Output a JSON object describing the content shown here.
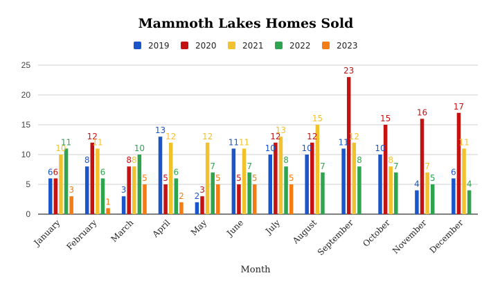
{
  "chart_data": {
    "type": "bar",
    "title": "Mammoth Lakes Homes Sold",
    "xlabel": "Month",
    "ylabel": "",
    "ylim": [
      0,
      25
    ],
    "yticks": [
      0,
      5,
      10,
      15,
      20,
      25
    ],
    "grid": true,
    "legend_position": "top",
    "categories": [
      "January",
      "February",
      "March",
      "April",
      "May",
      "June",
      "July",
      "August",
      "September",
      "October",
      "November",
      "December"
    ],
    "series": [
      {
        "name": "2019",
        "color": "#1a56c9",
        "values": [
          6,
          8,
          3,
          13,
          2,
          11,
          10,
          10,
          11,
          10,
          4,
          6
        ]
      },
      {
        "name": "2020",
        "color": "#c41212",
        "values": [
          6,
          12,
          8,
          5,
          3,
          5,
          12,
          12,
          23,
          15,
          16,
          17
        ]
      },
      {
        "name": "2021",
        "color": "#f2c12e",
        "values": [
          10,
          11,
          8,
          12,
          12,
          11,
          13,
          15,
          12,
          8,
          7,
          11
        ]
      },
      {
        "name": "2022",
        "color": "#2ea44f",
        "values": [
          11,
          6,
          10,
          6,
          7,
          7,
          8,
          7,
          8,
          7,
          5,
          4
        ]
      },
      {
        "name": "2023",
        "color": "#f47c12",
        "values": [
          3,
          1,
          5,
          2,
          5,
          5,
          5,
          null,
          null,
          null,
          null,
          null
        ]
      }
    ]
  }
}
